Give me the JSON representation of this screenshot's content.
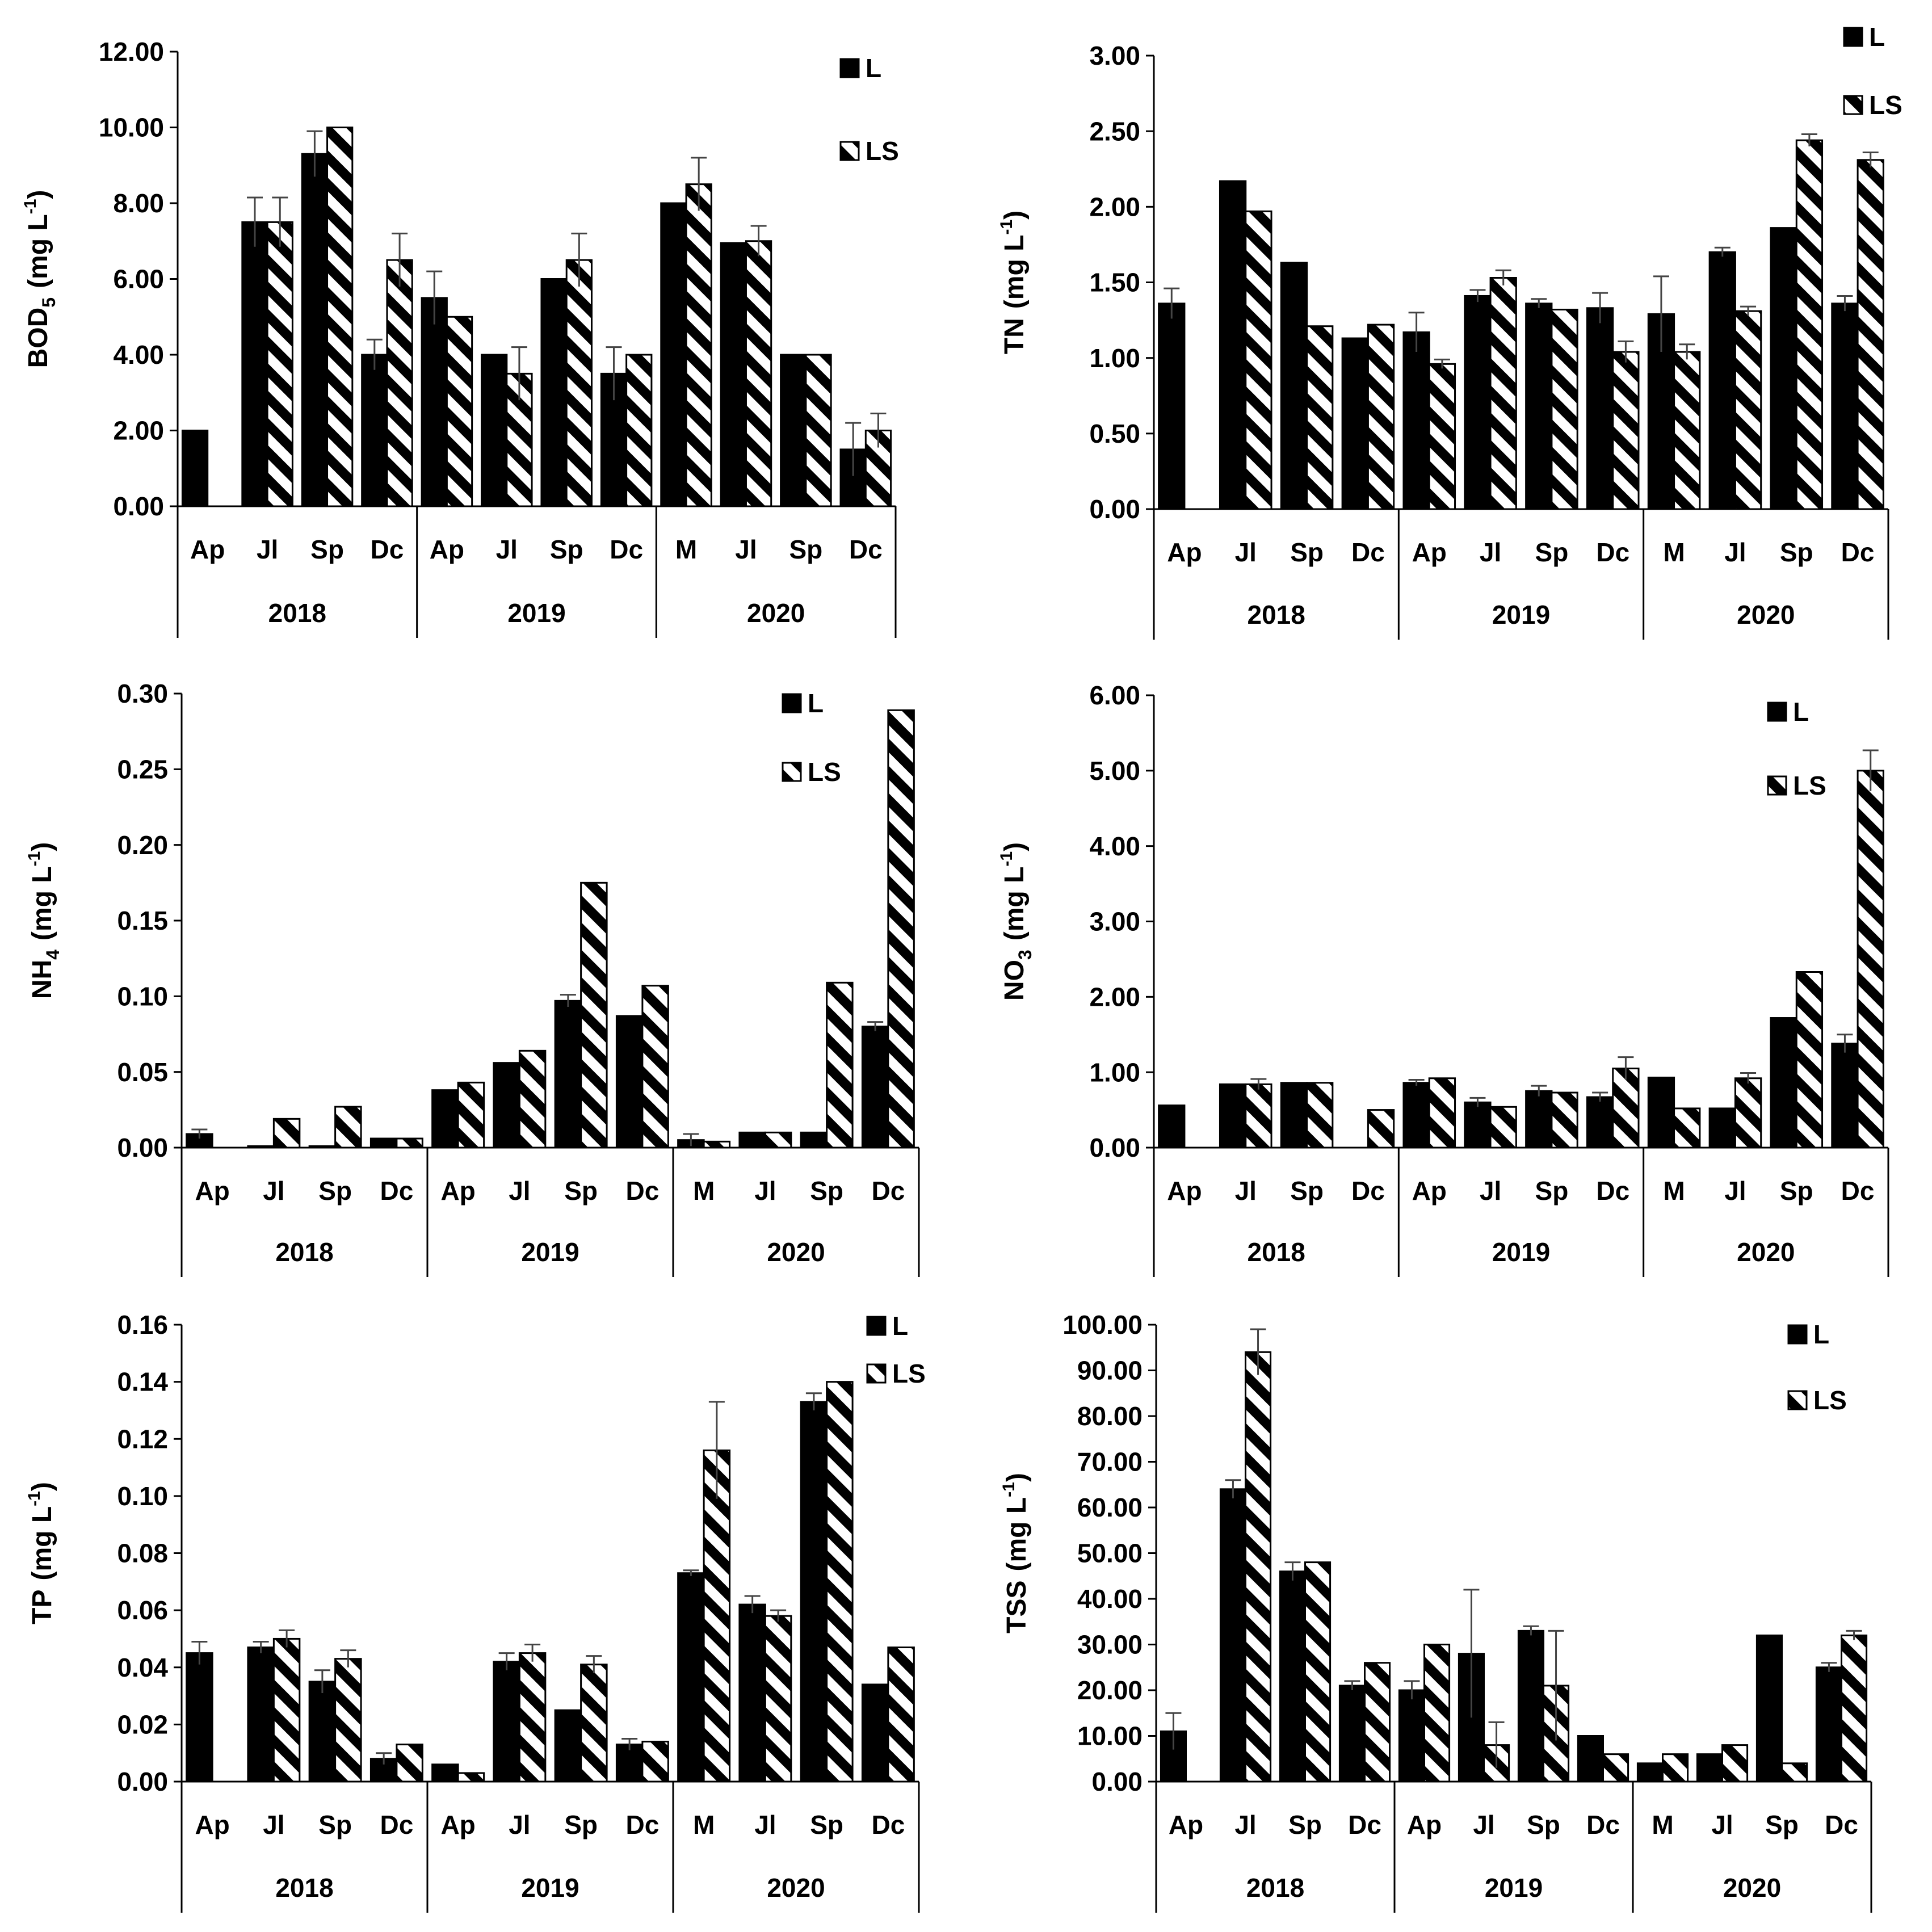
{
  "legend": {
    "series_l": "L",
    "series_ls": "LS"
  },
  "chart_data": [
    {
      "type": "bar",
      "ylabel": "BOD5 (mg L-1)",
      "ylabel_main": "BOD",
      "ylabel_sub": "5",
      "ylabel_unit": "(mg L",
      "ylabel_sup": "-1",
      "ylabel_close": ")",
      "ylim": [
        0,
        12
      ],
      "yticks": [
        "0.00",
        "2.00",
        "4.00",
        "6.00",
        "8.00",
        "10.00",
        "12.00"
      ],
      "categories": [
        "Ap",
        "Jl",
        "Sp",
        "Dc",
        "Ap",
        "Jl",
        "Sp",
        "Dc",
        "M",
        "Jl",
        "Sp",
        "Dc"
      ],
      "years": [
        "2018",
        "2019",
        "2020"
      ],
      "legend_position": "top-right",
      "series": [
        {
          "name": "L",
          "values": [
            2.0,
            7.5,
            9.3,
            4.0,
            5.5,
            4.0,
            6.0,
            3.5,
            8.0,
            6.95,
            4.0,
            1.5
          ],
          "errors": [
            0,
            0.65,
            0.6,
            0.4,
            0.7,
            0,
            0,
            0.7,
            0,
            0,
            0,
            0.7
          ]
        },
        {
          "name": "LS",
          "values": [
            null,
            7.5,
            10.0,
            6.5,
            5.0,
            3.5,
            6.5,
            4.0,
            8.5,
            7.0,
            4.0,
            2.0
          ],
          "errors": [
            0,
            0.65,
            0,
            0.7,
            0,
            0.7,
            0.7,
            0,
            0.7,
            0.4,
            0,
            0.45
          ]
        }
      ]
    },
    {
      "type": "bar",
      "ylabel": "TN (mg L-1)",
      "ylabel_main": "TN",
      "ylabel_sub": "",
      "ylabel_unit": "(mg L",
      "ylabel_sup": "-1",
      "ylabel_close": ")",
      "ylim": [
        0,
        3
      ],
      "yticks": [
        "0.00",
        "0.50",
        "1.00",
        "1.50",
        "2.00",
        "2.50",
        "3.00"
      ],
      "categories": [
        "Ap",
        "Jl",
        "Sp",
        "Dc",
        "Ap",
        "Jl",
        "Sp",
        "Dc",
        "M",
        "Jl",
        "Sp",
        "Dc"
      ],
      "years": [
        "2018",
        "2019",
        "2020"
      ],
      "legend_position": "top-right",
      "series": [
        {
          "name": "L",
          "values": [
            1.36,
            2.17,
            1.63,
            1.13,
            1.17,
            1.41,
            1.36,
            1.33,
            1.29,
            1.7,
            1.86,
            1.36
          ],
          "errors": [
            0.1,
            0,
            0,
            0,
            0.13,
            0.04,
            0.03,
            0.1,
            0.25,
            0.03,
            0,
            0.05
          ]
        },
        {
          "name": "LS",
          "values": [
            null,
            1.97,
            1.21,
            1.22,
            0.96,
            1.53,
            1.32,
            1.04,
            1.04,
            1.31,
            2.44,
            2.31
          ],
          "errors": [
            0,
            0,
            0,
            0,
            0.03,
            0.05,
            0,
            0.07,
            0.05,
            0.03,
            0.04,
            0.05
          ]
        }
      ]
    },
    {
      "type": "bar",
      "ylabel": "NH4 (mg L-1)",
      "ylabel_main": "NH",
      "ylabel_sub": "4",
      "ylabel_unit": "(mg L",
      "ylabel_sup": "-1",
      "ylabel_close": ")",
      "ylim": [
        0,
        0.3
      ],
      "yticks": [
        "0.00",
        "0.05",
        "0.10",
        "0.15",
        "0.20",
        "0.25",
        "0.30"
      ],
      "categories": [
        "Ap",
        "Jl",
        "Sp",
        "Dc",
        "Ap",
        "Jl",
        "Sp",
        "Dc",
        "M",
        "Jl",
        "Sp",
        "Dc"
      ],
      "years": [
        "2018",
        "2019",
        "2020"
      ],
      "legend_position": "top-right",
      "series": [
        {
          "name": "L",
          "values": [
            0.009,
            0.001,
            0.001,
            0.006,
            0.038,
            0.056,
            0.097,
            0.087,
            0.005,
            0.01,
            0.01,
            0.08
          ],
          "errors": [
            0.003,
            0,
            0,
            0,
            0,
            0,
            0.004,
            0,
            0.004,
            0,
            0,
            0.003
          ]
        },
        {
          "name": "LS",
          "values": [
            null,
            0.019,
            0.027,
            0.006,
            0.043,
            0.064,
            0.175,
            0.107,
            0.004,
            0.01,
            0.109,
            0.289
          ],
          "errors": [
            0,
            0,
            0,
            0,
            0,
            0,
            0,
            0,
            0,
            0,
            0,
            0
          ]
        }
      ]
    },
    {
      "type": "bar",
      "ylabel": "NO3 (mg L-1)",
      "ylabel_main": "NO",
      "ylabel_sub": "3",
      "ylabel_unit": "(mg L",
      "ylabel_sup": "-1",
      "ylabel_close": ")",
      "ylim": [
        0,
        6
      ],
      "yticks": [
        "0.00",
        "1.00",
        "2.00",
        "3.00",
        "4.00",
        "5.00",
        "6.00"
      ],
      "categories": [
        "Ap",
        "Jl",
        "Sp",
        "Dc",
        "Ap",
        "Jl",
        "Sp",
        "Dc",
        "M",
        "Jl",
        "Sp",
        "Dc"
      ],
      "years": [
        "2018",
        "2019",
        "2020"
      ],
      "legend_position": "top-right",
      "series": [
        {
          "name": "L",
          "values": [
            0.56,
            0.84,
            0.86,
            null,
            0.86,
            0.6,
            0.75,
            0.67,
            0.93,
            0.52,
            1.72,
            1.38
          ],
          "errors": [
            0,
            0,
            0,
            0,
            0.04,
            0.06,
            0.07,
            0.06,
            0,
            0,
            0,
            0.12
          ]
        },
        {
          "name": "LS",
          "values": [
            null,
            0.84,
            0.86,
            0.5,
            0.92,
            0.54,
            0.73,
            1.05,
            0.52,
            0.92,
            2.33,
            5.0
          ],
          "errors": [
            0,
            0.07,
            0,
            0,
            0,
            0,
            0,
            0.15,
            0,
            0.07,
            0,
            0.27
          ]
        }
      ]
    },
    {
      "type": "bar",
      "ylabel": "TP (mg L-1)",
      "ylabel_main": "TP",
      "ylabel_sub": "",
      "ylabel_unit": "(mg L",
      "ylabel_sup": "-1",
      "ylabel_close": ")",
      "ylim": [
        0,
        0.16
      ],
      "yticks": [
        "0.00",
        "0.02",
        "0.04",
        "0.06",
        "0.08",
        "0.10",
        "0.12",
        "0.14",
        "0.16"
      ],
      "categories": [
        "Ap",
        "Jl",
        "Sp",
        "Dc",
        "Ap",
        "Jl",
        "Sp",
        "Dc",
        "M",
        "Jl",
        "Sp",
        "Dc"
      ],
      "years": [
        "2018",
        "2019",
        "2020"
      ],
      "legend_position": "top-right",
      "series": [
        {
          "name": "L",
          "values": [
            0.045,
            0.047,
            0.035,
            0.008,
            0.006,
            0.042,
            0.025,
            0.013,
            0.073,
            0.062,
            0.133,
            0.034
          ],
          "errors": [
            0.004,
            0.002,
            0.004,
            0.002,
            0,
            0.003,
            0,
            0.002,
            0.001,
            0.003,
            0.003,
            0
          ]
        },
        {
          "name": "LS",
          "values": [
            null,
            0.05,
            0.043,
            0.013,
            0.003,
            0.045,
            0.041,
            0.014,
            0.116,
            0.058,
            0.14,
            0.047
          ],
          "errors": [
            0,
            0.003,
            0.003,
            0,
            0,
            0.003,
            0.003,
            0,
            0.017,
            0.002,
            0,
            0
          ]
        }
      ]
    },
    {
      "type": "bar",
      "ylabel": "TSS (mg L-1)",
      "ylabel_main": "TSS",
      "ylabel_sub": "",
      "ylabel_unit": "(mg L",
      "ylabel_sup": "-1",
      "ylabel_close": ")",
      "ylim": [
        0,
        100
      ],
      "yticks": [
        "0.00",
        "10.00",
        "20.00",
        "30.00",
        "40.00",
        "50.00",
        "60.00",
        "70.00",
        "80.00",
        "90.00",
        "100.00"
      ],
      "categories": [
        "Ap",
        "Jl",
        "Sp",
        "Dc",
        "Ap",
        "Jl",
        "Sp",
        "Dc",
        "M",
        "Jl",
        "Sp",
        "Dc"
      ],
      "years": [
        "2018",
        "2019",
        "2020"
      ],
      "legend_position": "top-right",
      "series": [
        {
          "name": "L",
          "values": [
            11,
            64,
            46,
            21,
            20,
            28,
            33,
            10,
            4,
            6,
            32,
            25
          ],
          "errors": [
            4,
            2,
            2,
            1,
            2,
            14,
            1,
            0,
            0,
            0,
            0,
            1
          ]
        },
        {
          "name": "LS",
          "values": [
            null,
            94,
            48,
            26,
            30,
            8,
            21,
            6,
            6,
            8,
            4,
            32
          ],
          "errors": [
            0,
            5,
            0,
            0,
            0,
            5,
            12,
            0,
            0,
            0,
            0,
            1
          ]
        }
      ]
    }
  ]
}
